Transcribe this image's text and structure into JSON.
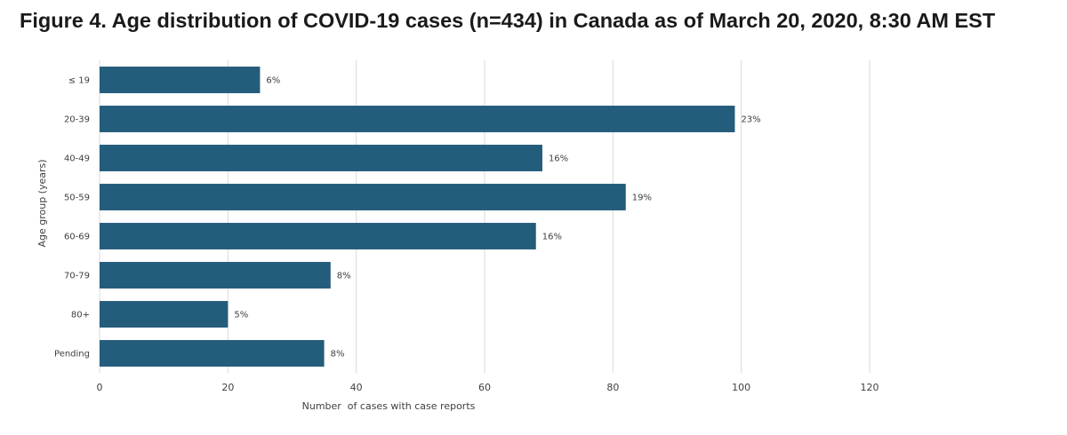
{
  "figure_title": "Figure 4. Age distribution of COVID-19 cases (n=434) in Canada as of March 20, 2020, 8:30 AM EST",
  "colors": {
    "bar": "#245c7c",
    "grid": "#d9d9d9",
    "text": "#404040"
  },
  "chart_data": {
    "type": "bar",
    "orientation": "horizontal",
    "title": "",
    "xlabel": "Number  of cases with case reports",
    "ylabel": "Age group (years)",
    "xlim": [
      0,
      120
    ],
    "xticks": [
      0,
      20,
      40,
      60,
      80,
      100,
      120
    ],
    "grid": true,
    "categories": [
      "≤ 19",
      "20-39",
      "40-49",
      "50-59",
      "60-69",
      "70-79",
      "80+",
      "Pending"
    ],
    "values": [
      25,
      99,
      69,
      82,
      68,
      36,
      20,
      35
    ],
    "data_labels": [
      "6%",
      "23%",
      "16%",
      "19%",
      "16%",
      "8%",
      "5%",
      "8%"
    ]
  }
}
